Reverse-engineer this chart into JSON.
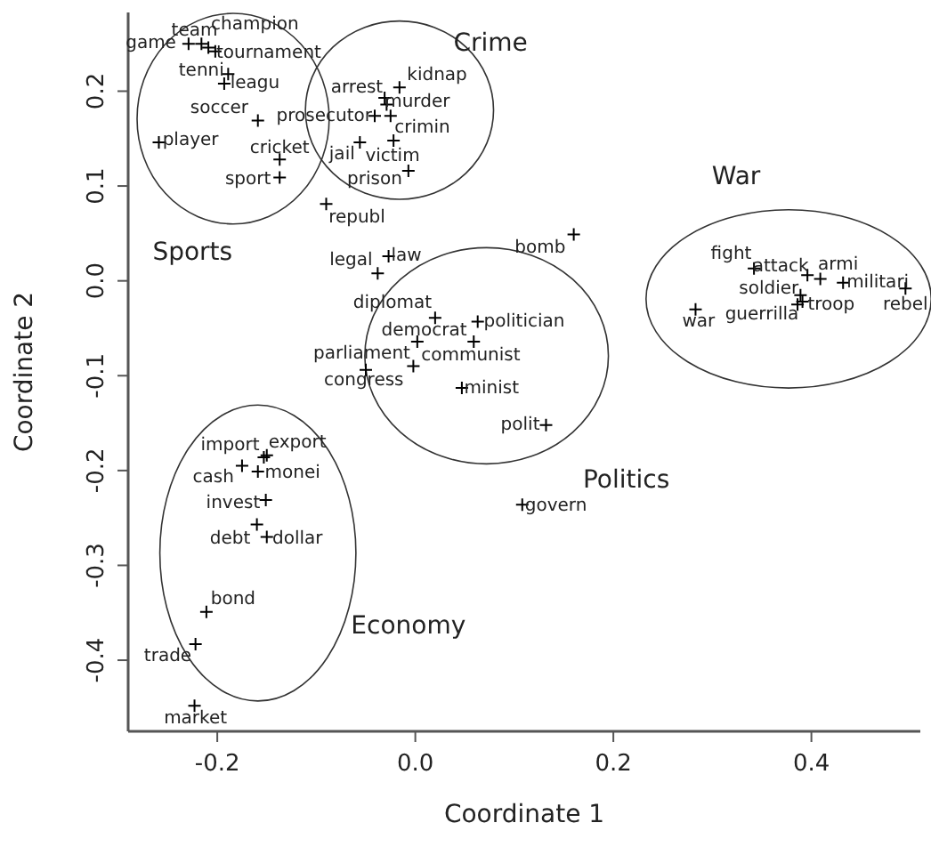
{
  "chart_data": {
    "type": "scatter",
    "xlabel": "Coordinate 1",
    "ylabel": "Coordinate 2",
    "xlim": [
      -0.29,
      0.51
    ],
    "ylim": [
      -0.475,
      0.283
    ],
    "xticks": [
      {
        "value": -0.2,
        "label": "-0.2"
      },
      {
        "value": 0,
        "label": "0.0"
      },
      {
        "value": 0.2,
        "label": "0.2"
      },
      {
        "value": 0.4,
        "label": "0.4"
      }
    ],
    "yticks": [
      {
        "value": -0.4,
        "label": "-0.4"
      },
      {
        "value": -0.3,
        "label": "-0.3"
      },
      {
        "value": -0.2,
        "label": "-0.2"
      },
      {
        "value": -0.1,
        "label": "-0.1"
      },
      {
        "value": 0,
        "label": "0.0"
      },
      {
        "value": 0.1,
        "label": "0.1"
      },
      {
        "value": 0.2,
        "label": "0.2"
      }
    ],
    "grid": false,
    "marker": "cross",
    "series": [
      {
        "color": "#000000",
        "x": [
          -0.229,
          -0.216,
          -0.209,
          -0.202,
          -0.189,
          -0.193,
          -0.159,
          -0.259,
          -0.137,
          -0.137,
          -0.031,
          -0.016,
          -0.041,
          -0.029,
          -0.025,
          -0.056,
          -0.022,
          -0.007,
          -0.09,
          -0.038,
          -0.027,
          0.16,
          0.02,
          0.002,
          0.063,
          0.059,
          -0.002,
          -0.05,
          0.047,
          0.132,
          0.108,
          0.342,
          0.396,
          0.409,
          0.432,
          0.495,
          0.389,
          0.391,
          0.386,
          0.283,
          -0.153,
          -0.15,
          -0.175,
          -0.159,
          -0.151,
          -0.16,
          -0.15,
          -0.211,
          -0.222,
          -0.223
        ],
        "values": [
          0.25,
          0.25,
          0.246,
          0.242,
          0.218,
          0.208,
          0.169,
          0.146,
          0.128,
          0.109,
          0.193,
          0.204,
          0.174,
          0.186,
          0.174,
          0.146,
          0.148,
          0.116,
          0.081,
          0.008,
          0.026,
          0.049,
          -0.039,
          -0.064,
          -0.043,
          -0.064,
          -0.09,
          -0.094,
          -0.113,
          -0.152,
          -0.236,
          0.013,
          0.006,
          0.002,
          -0.002,
          -0.008,
          -0.015,
          -0.022,
          -0.025,
          -0.03,
          -0.186,
          -0.184,
          -0.195,
          -0.201,
          -0.231,
          -0.257,
          -0.27,
          -0.349,
          -0.383,
          -0.448
        ]
      }
    ],
    "annotations": [
      {
        "text": "game",
        "x": -0.229,
        "y": 0.25
      },
      {
        "text": "team",
        "x": -0.216,
        "y": 0.25
      },
      {
        "text": "champion",
        "x": -0.209,
        "y": 0.246
      },
      {
        "text": "tournament",
        "x": -0.202,
        "y": 0.242
      },
      {
        "text": "tenni",
        "x": -0.189,
        "y": 0.218
      },
      {
        "text": "leagu",
        "x": -0.193,
        "y": 0.208
      },
      {
        "text": "soccer",
        "x": -0.159,
        "y": 0.169
      },
      {
        "text": "player",
        "x": -0.259,
        "y": 0.146
      },
      {
        "text": "cricket",
        "x": -0.137,
        "y": 0.128
      },
      {
        "text": "sport",
        "x": -0.137,
        "y": 0.109
      },
      {
        "text": "arrest",
        "x": -0.031,
        "y": 0.193
      },
      {
        "text": "kidnap",
        "x": -0.016,
        "y": 0.204
      },
      {
        "text": "prosecutor",
        "x": -0.041,
        "y": 0.174
      },
      {
        "text": "murder",
        "x": -0.029,
        "y": 0.186
      },
      {
        "text": "crimin",
        "x": -0.025,
        "y": 0.174
      },
      {
        "text": "jail",
        "x": -0.056,
        "y": 0.146
      },
      {
        "text": "victim",
        "x": -0.022,
        "y": 0.148
      },
      {
        "text": "prison",
        "x": -0.007,
        "y": 0.116
      },
      {
        "text": "republ",
        "x": -0.09,
        "y": 0.081
      },
      {
        "text": "legal",
        "x": -0.038,
        "y": 0.008
      },
      {
        "text": "law",
        "x": -0.027,
        "y": 0.026
      },
      {
        "text": "bomb",
        "x": 0.16,
        "y": 0.049
      },
      {
        "text": "diplomat",
        "x": 0.02,
        "y": -0.039
      },
      {
        "text": "democrat",
        "x": 0.002,
        "y": -0.064
      },
      {
        "text": "politician",
        "x": 0.063,
        "y": -0.043
      },
      {
        "text": "communist",
        "x": 0.059,
        "y": -0.064
      },
      {
        "text": "parliament",
        "x": -0.002,
        "y": -0.09
      },
      {
        "text": "congress",
        "x": -0.05,
        "y": -0.094
      },
      {
        "text": "minist",
        "x": 0.047,
        "y": -0.113
      },
      {
        "text": "polit",
        "x": 0.132,
        "y": -0.152
      },
      {
        "text": "govern",
        "x": 0.108,
        "y": -0.236
      },
      {
        "text": "fight",
        "x": 0.342,
        "y": 0.013
      },
      {
        "text": "attack",
        "x": 0.396,
        "y": 0.006
      },
      {
        "text": "armi",
        "x": 0.409,
        "y": 0.002
      },
      {
        "text": "militari",
        "x": 0.432,
        "y": -0.002
      },
      {
        "text": "rebel",
        "x": 0.495,
        "y": -0.008
      },
      {
        "text": "soldier",
        "x": 0.389,
        "y": -0.015
      },
      {
        "text": "troop",
        "x": 0.391,
        "y": -0.022
      },
      {
        "text": "guerrilla",
        "x": 0.386,
        "y": -0.025
      },
      {
        "text": "war",
        "x": 0.283,
        "y": -0.03
      },
      {
        "text": "import",
        "x": -0.153,
        "y": -0.186
      },
      {
        "text": "export",
        "x": -0.15,
        "y": -0.184
      },
      {
        "text": "cash",
        "x": -0.175,
        "y": -0.195
      },
      {
        "text": "monei",
        "x": -0.159,
        "y": -0.201
      },
      {
        "text": "invest",
        "x": -0.151,
        "y": -0.231
      },
      {
        "text": "debt",
        "x": -0.16,
        "y": -0.257
      },
      {
        "text": "dollar",
        "x": -0.15,
        "y": -0.27
      },
      {
        "text": "bond",
        "x": -0.211,
        "y": -0.349
      },
      {
        "text": "trade",
        "x": -0.222,
        "y": -0.383
      },
      {
        "text": "market",
        "x": -0.223,
        "y": -0.448
      },
      "Sports",
      "Crime",
      "War",
      "Politics",
      "Economy"
    ]
  }
}
